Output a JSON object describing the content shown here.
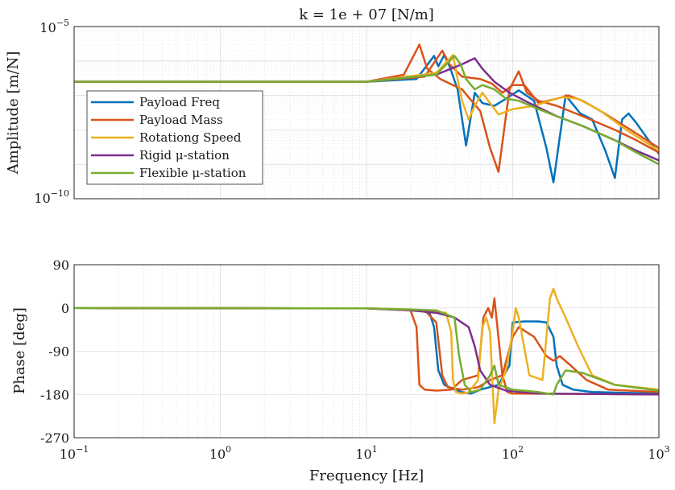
{
  "chart_data": {
    "type": "line",
    "title": "k = 1e + 07 [N/m]",
    "xlabel": "Frequency [Hz]",
    "x_scale": "log",
    "xlim": [
      0.1,
      1000
    ],
    "x_tick_labels": [
      "10^{-1}",
      "10^{0}",
      "10^{1}",
      "10^{2}",
      "10^{3}"
    ],
    "grid": true,
    "legend_position": "lower-left of amplitude plot",
    "legend": [
      "Payload Freq",
      "Payload Mass",
      "Rotationg Speed",
      "Rigid μ-station",
      "Flexible μ-station"
    ],
    "colors": [
      "#0072BD",
      "#D95319",
      "#EDB120",
      "#7E2F8E",
      "#77AC30"
    ],
    "amplitude": {
      "ylabel": "Amplitude [m/N]",
      "y_scale": "log",
      "ylim": [
        1e-10,
        1e-05
      ],
      "y_tick_labels": [
        "10^{-5}",
        "10^{-10}"
      ],
      "series": [
        {
          "name": "Payload Freq",
          "color": "#0072BD",
          "points": [
            [
              0.1,
              2.5e-07
            ],
            [
              10,
              2.5e-07
            ],
            [
              22,
              3e-07
            ],
            [
              29,
              1.4e-06
            ],
            [
              31,
              7e-07
            ],
            [
              34,
              1.5e-06
            ],
            [
              37,
              7e-07
            ],
            [
              42,
              1.5e-07
            ],
            [
              48,
              3.5e-09
            ],
            [
              55,
              1.2e-07
            ],
            [
              62,
              6e-08
            ],
            [
              75,
              5e-08
            ],
            [
              90,
              8e-08
            ],
            [
              110,
              1.4e-07
            ],
            [
              140,
              7e-08
            ],
            [
              170,
              3e-09
            ],
            [
              190,
              3e-10
            ],
            [
              230,
              1e-07
            ],
            [
              290,
              3e-08
            ],
            [
              350,
              2e-08
            ],
            [
              430,
              2.5e-09
            ],
            [
              500,
              4e-10
            ],
            [
              560,
              2e-08
            ],
            [
              620,
              3e-08
            ],
            [
              700,
              1.6e-08
            ],
            [
              850,
              5e-09
            ],
            [
              1000,
              2e-09
            ]
          ]
        },
        {
          "name": "Payload Mass",
          "color": "#D95319",
          "points": [
            [
              0.1,
              2.5e-07
            ],
            [
              10,
              2.5e-07
            ],
            [
              18,
              4e-07
            ],
            [
              23,
              3e-06
            ],
            [
              26,
              6e-07
            ],
            [
              32,
              3e-07
            ],
            [
              45,
              1.5e-07
            ],
            [
              60,
              3.5e-08
            ],
            [
              70,
              3e-09
            ],
            [
              80,
              6e-10
            ],
            [
              95,
              1.5e-07
            ],
            [
              110,
              5e-07
            ],
            [
              125,
              1.2e-07
            ],
            [
              150,
              7e-08
            ],
            [
              200,
              5e-08
            ],
            [
              300,
              2.5e-08
            ],
            [
              500,
              1e-08
            ],
            [
              700,
              5e-09
            ],
            [
              1000,
              2.2e-09
            ]
          ]
        },
        {
          "name": "Payload Mass",
          "color": "#D95319",
          "points": [
            [
              0.1,
              2.5e-07
            ],
            [
              10,
              2.5e-07
            ],
            [
              25,
              3.5e-07
            ],
            [
              33,
              2e-06
            ],
            [
              37,
              8e-07
            ],
            [
              45,
              3.5e-07
            ],
            [
              60,
              3e-07
            ],
            [
              72,
              2.2e-07
            ],
            [
              85,
              1.2e-07
            ],
            [
              100,
              2e-07
            ],
            [
              120,
              2e-07
            ],
            [
              150,
              6e-08
            ],
            [
              200,
              8e-08
            ],
            [
              240,
              1e-07
            ],
            [
              300,
              7e-08
            ],
            [
              400,
              3.5e-08
            ],
            [
              600,
              1.2e-08
            ],
            [
              1000,
              3e-09
            ]
          ]
        },
        {
          "name": "Rotationg Speed",
          "color": "#EDB120",
          "points": [
            [
              0.1,
              2.5e-07
            ],
            [
              10,
              2.5e-07
            ],
            [
              30,
              4.5e-07
            ],
            [
              39,
              1.5e-06
            ],
            [
              42,
              3e-07
            ],
            [
              45,
              7e-08
            ],
            [
              50,
              2e-08
            ],
            [
              55,
              5e-08
            ],
            [
              62,
              1.2e-07
            ],
            [
              80,
              2.8e-08
            ],
            [
              100,
              4e-08
            ],
            [
              140,
              5e-08
            ],
            [
              180,
              7e-08
            ],
            [
              220,
              9e-08
            ],
            [
              280,
              8e-08
            ],
            [
              400,
              3.5e-08
            ],
            [
              600,
              1e-08
            ],
            [
              1000,
              2.5e-09
            ]
          ]
        },
        {
          "name": "Rigid μ-station",
          "color": "#7E2F8E",
          "points": [
            [
              0.1,
              2.5e-07
            ],
            [
              10,
              2.5e-07
            ],
            [
              30,
              4e-07
            ],
            [
              45,
              8e-07
            ],
            [
              55,
              1.2e-06
            ],
            [
              62,
              6e-07
            ],
            [
              75,
              2.5e-07
            ],
            [
              95,
              1.2e-07
            ],
            [
              130,
              6e-08
            ],
            [
              200,
              2.5e-08
            ],
            [
              300,
              1.3e-08
            ],
            [
              500,
              5e-09
            ],
            [
              700,
              2.5e-09
            ],
            [
              1000,
              1.3e-09
            ]
          ]
        },
        {
          "name": "Flexible μ-station",
          "color": "#77AC30",
          "points": [
            [
              0.1,
              2.5e-07
            ],
            [
              10,
              2.5e-07
            ],
            [
              30,
              4e-07
            ],
            [
              40,
              1.4e-06
            ],
            [
              44,
              8e-07
            ],
            [
              48,
              3e-07
            ],
            [
              55,
              1.5e-07
            ],
            [
              62,
              2e-07
            ],
            [
              75,
              1.5e-07
            ],
            [
              90,
              8e-08
            ],
            [
              110,
              7e-08
            ],
            [
              150,
              4e-08
            ],
            [
              200,
              2.5e-08
            ],
            [
              300,
              1.3e-08
            ],
            [
              500,
              5e-09
            ],
            [
              700,
              2.2e-09
            ],
            [
              1000,
              1e-09
            ]
          ]
        }
      ]
    },
    "phase": {
      "ylabel": "Phase [deg]",
      "y_scale": "linear",
      "ylim": [
        -270,
        90
      ],
      "y_ticks": [
        90,
        0,
        -90,
        -180,
        -270
      ],
      "y_tick_labels": [
        "90",
        "0",
        "-90",
        "-180",
        "-270"
      ],
      "series": [
        {
          "name": "Payload Freq",
          "color": "#0072BD",
          "points": [
            [
              0.1,
              0
            ],
            [
              10,
              -1
            ],
            [
              22,
              -4
            ],
            [
              27,
              -10
            ],
            [
              29,
              -40
            ],
            [
              31,
              -130
            ],
            [
              34,
              -160
            ],
            [
              40,
              -170
            ],
            [
              45,
              -175
            ],
            [
              52,
              -178
            ],
            [
              60,
              -170
            ],
            [
              80,
              -160
            ],
            [
              95,
              -120
            ],
            [
              100,
              -30
            ],
            [
              120,
              -28
            ],
            [
              150,
              -28
            ],
            [
              170,
              -30
            ],
            [
              190,
              -60
            ],
            [
              200,
              -120
            ],
            [
              220,
              -160
            ],
            [
              260,
              -170
            ],
            [
              350,
              -175
            ],
            [
              1000,
              -178
            ]
          ]
        },
        {
          "name": "Payload Mass",
          "color": "#D95319",
          "points": [
            [
              0.1,
              0
            ],
            [
              10,
              -1
            ],
            [
              20,
              -5
            ],
            [
              22,
              -40
            ],
            [
              23,
              -160
            ],
            [
              25,
              -170
            ],
            [
              30,
              -172
            ],
            [
              38,
              -170
            ],
            [
              45,
              -150
            ],
            [
              58,
              -140
            ],
            [
              63,
              -20
            ],
            [
              68,
              0
            ],
            [
              72,
              -20
            ],
            [
              75,
              20
            ],
            [
              78,
              -30
            ],
            [
              85,
              -140
            ],
            [
              92,
              -175
            ],
            [
              100,
              -178
            ],
            [
              1000,
              -180
            ]
          ]
        },
        {
          "name": "Payload Mass",
          "color": "#D95319",
          "points": [
            [
              0.1,
              0
            ],
            [
              10,
              -1
            ],
            [
              25,
              -5
            ],
            [
              30,
              -30
            ],
            [
              33,
              -140
            ],
            [
              36,
              -165
            ],
            [
              45,
              -170
            ],
            [
              58,
              -165
            ],
            [
              70,
              -150
            ],
            [
              85,
              -140
            ],
            [
              100,
              -60
            ],
            [
              110,
              -40
            ],
            [
              140,
              -60
            ],
            [
              170,
              -100
            ],
            [
              190,
              -110
            ],
            [
              210,
              -100
            ],
            [
              250,
              -120
            ],
            [
              320,
              -150
            ],
            [
              450,
              -170
            ],
            [
              1000,
              -175
            ]
          ]
        },
        {
          "name": "Rotationg Speed",
          "color": "#EDB120",
          "points": [
            [
              0.1,
              0
            ],
            [
              10,
              -1
            ],
            [
              20,
              -3
            ],
            [
              35,
              -10
            ],
            [
              38,
              -50
            ],
            [
              39,
              -150
            ],
            [
              41,
              -175
            ],
            [
              45,
              -178
            ],
            [
              50,
              -175
            ],
            [
              58,
              -150
            ],
            [
              62,
              -40
            ],
            [
              66,
              -20
            ],
            [
              70,
              -50
            ],
            [
              75,
              -240
            ],
            [
              80,
              -170
            ],
            [
              90,
              -130
            ],
            [
              100,
              -50
            ],
            [
              105,
              0
            ],
            [
              110,
              -20
            ],
            [
              130,
              -140
            ],
            [
              160,
              -150
            ],
            [
              180,
              20
            ],
            [
              190,
              40
            ],
            [
              200,
              20
            ],
            [
              230,
              -20
            ],
            [
              280,
              -80
            ],
            [
              350,
              -140
            ],
            [
              500,
              -160
            ],
            [
              1000,
              -170
            ]
          ]
        },
        {
          "name": "Rigid μ-station",
          "color": "#7E2F8E",
          "points": [
            [
              0.1,
              0
            ],
            [
              10,
              -1
            ],
            [
              20,
              -5
            ],
            [
              30,
              -10
            ],
            [
              40,
              -20
            ],
            [
              50,
              -40
            ],
            [
              55,
              -80
            ],
            [
              60,
              -130
            ],
            [
              70,
              -160
            ],
            [
              90,
              -172
            ],
            [
              150,
              -178
            ],
            [
              1000,
              -180
            ]
          ]
        },
        {
          "name": "Flexible μ-station",
          "color": "#77AC30",
          "points": [
            [
              0.1,
              0
            ],
            [
              10,
              -1
            ],
            [
              30,
              -5
            ],
            [
              40,
              -20
            ],
            [
              43,
              -100
            ],
            [
              47,
              -160
            ],
            [
              52,
              -175
            ],
            [
              60,
              -170
            ],
            [
              70,
              -140
            ],
            [
              75,
              -120
            ],
            [
              80,
              -160
            ],
            [
              100,
              -170
            ],
            [
              150,
              -175
            ],
            [
              190,
              -180
            ],
            [
              200,
              -160
            ],
            [
              230,
              -130
            ],
            [
              300,
              -135
            ],
            [
              500,
              -160
            ],
            [
              1000,
              -172
            ]
          ]
        }
      ]
    }
  }
}
